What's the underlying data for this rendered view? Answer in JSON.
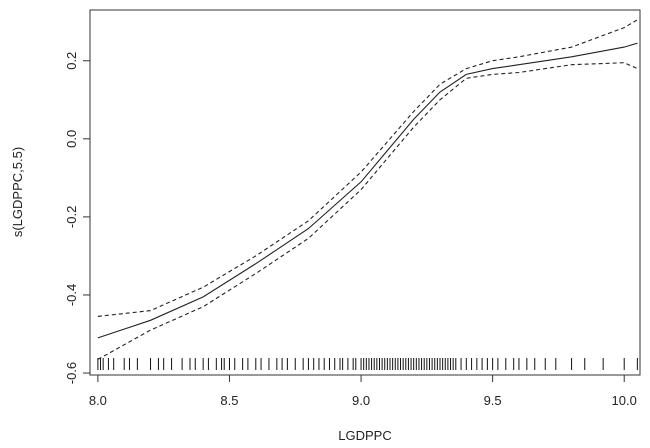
{
  "chart_data": {
    "type": "line",
    "title": "",
    "xlabel": "LGDPPC",
    "ylabel": "s(LGDPPC,5.5)",
    "xlim": [
      7.97,
      10.06
    ],
    "ylim": [
      -0.605,
      0.33
    ],
    "grid": false,
    "x_ticks": [
      "8.0",
      "8.5",
      "9.0",
      "9.5",
      "10.0"
    ],
    "y_ticks": [
      "-0.6",
      "-0.4",
      "-0.2",
      "0.0",
      "0.2"
    ],
    "x_tick_values": [
      8.0,
      8.5,
      9.0,
      9.5,
      10.0
    ],
    "y_tick_values": [
      -0.6,
      -0.4,
      -0.2,
      0.0,
      0.2
    ],
    "series": [
      {
        "style": "solid",
        "x": [
          8.0,
          8.2,
          8.4,
          8.6,
          8.8,
          9.0,
          9.2,
          9.3,
          9.4,
          9.5,
          9.6,
          9.8,
          10.0,
          10.05
        ],
        "y": [
          -0.51,
          -0.465,
          -0.405,
          -0.32,
          -0.23,
          -0.11,
          0.05,
          0.12,
          0.165,
          0.18,
          0.19,
          0.21,
          0.235,
          0.245
        ]
      },
      {
        "style": "dashed",
        "x": [
          8.0,
          8.2,
          8.4,
          8.6,
          8.8,
          9.0,
          9.2,
          9.3,
          9.4,
          9.5,
          9.6,
          9.8,
          10.0,
          10.05
        ],
        "y": [
          -0.455,
          -0.44,
          -0.38,
          -0.3,
          -0.21,
          -0.085,
          0.07,
          0.14,
          0.18,
          0.2,
          0.21,
          0.235,
          0.285,
          0.305
        ]
      },
      {
        "style": "dashed",
        "x": [
          8.0,
          8.2,
          8.4,
          8.6,
          8.8,
          9.0,
          9.2,
          9.3,
          9.4,
          9.5,
          9.6,
          9.8,
          10.0,
          10.05
        ],
        "y": [
          -0.565,
          -0.49,
          -0.43,
          -0.345,
          -0.255,
          -0.13,
          0.03,
          0.1,
          0.155,
          0.165,
          0.17,
          0.19,
          0.195,
          0.18
        ]
      }
    ],
    "rug": [
      8.0,
      8.01,
      8.02,
      8.04,
      8.06,
      8.1,
      8.12,
      8.15,
      8.2,
      8.23,
      8.25,
      8.28,
      8.32,
      8.35,
      8.37,
      8.4,
      8.42,
      8.45,
      8.47,
      8.48,
      8.5,
      8.52,
      8.55,
      8.57,
      8.6,
      8.62,
      8.65,
      8.68,
      8.7,
      8.72,
      8.75,
      8.78,
      8.8,
      8.82,
      8.84,
      8.86,
      8.88,
      8.9,
      8.92,
      8.93,
      8.95,
      8.97,
      8.98,
      9.0,
      9.01,
      9.02,
      9.03,
      9.04,
      9.05,
      9.06,
      9.07,
      9.08,
      9.09,
      9.1,
      9.11,
      9.12,
      9.13,
      9.14,
      9.15,
      9.16,
      9.17,
      9.18,
      9.19,
      9.2,
      9.21,
      9.22,
      9.23,
      9.24,
      9.25,
      9.26,
      9.27,
      9.28,
      9.29,
      9.3,
      9.31,
      9.32,
      9.33,
      9.34,
      9.35,
      9.36,
      9.38,
      9.4,
      9.42,
      9.44,
      9.46,
      9.48,
      9.5,
      9.52,
      9.55,
      9.58,
      9.6,
      9.63,
      9.66,
      9.7,
      9.74,
      9.8,
      9.85,
      9.92,
      10.0,
      10.05
    ]
  }
}
